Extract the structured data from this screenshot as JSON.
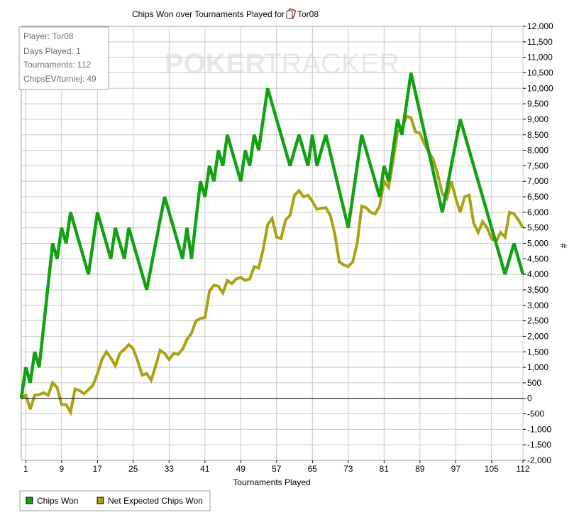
{
  "colors": {
    "chips_won": "#13a013",
    "net_expected": "#a8a214",
    "grid": "#c8c8c8",
    "axis": "#000000"
  },
  "watermark": {
    "part1": "POKER",
    "part2": "TRACKER"
  },
  "player_icon": "card-icon",
  "info_box": {
    "lines": [
      "Player: Tor08",
      "Days Played: 1",
      "Tournaments: 112",
      "ChipsEV/turniej: 49"
    ]
  },
  "legend": {
    "items": [
      "Chips Won",
      "Net Expected Chips Won"
    ]
  },
  "chart_data": {
    "type": "line",
    "title_prefix": "Chips Won over Tournaments Played for",
    "title_player": "Tor08",
    "xlabel": "Tournaments Played",
    "ylabel": "#",
    "xlim": [
      0,
      112
    ],
    "ylim": [
      -2000,
      12000
    ],
    "x_ticks": [
      1,
      9,
      17,
      25,
      33,
      41,
      49,
      57,
      65,
      73,
      81,
      89,
      97,
      105,
      112
    ],
    "y_ticks": [
      -2000,
      -1500,
      -1000,
      -500,
      0,
      500,
      1000,
      1500,
      2000,
      2500,
      3000,
      3500,
      4000,
      4500,
      5000,
      5500,
      6000,
      6500,
      7000,
      7500,
      8000,
      8500,
      9000,
      9500,
      10000,
      10500,
      11000,
      11500,
      12000
    ],
    "y_tick_labels": [
      "-2,000",
      "-1,500",
      "-1,000",
      "-500",
      "0",
      "500",
      "1,000",
      "1,500",
      "2,000",
      "2,500",
      "3,000",
      "3,500",
      "4,000",
      "4,500",
      "5,000",
      "5,500",
      "6,000",
      "6,500",
      "7,000",
      "7,500",
      "8,000",
      "8,500",
      "9,000",
      "9,500",
      "10,000",
      "10,500",
      "11,000",
      "11,500",
      "12,000"
    ],
    "grid": true,
    "legend_position": "bottom-left",
    "series": [
      {
        "name": "Chips Won",
        "points": [
          [
            0,
            0
          ],
          [
            1,
            1000
          ],
          [
            2,
            500
          ],
          [
            3,
            1500
          ],
          [
            4,
            1000
          ],
          [
            7,
            5000
          ],
          [
            8,
            4500
          ],
          [
            9,
            5500
          ],
          [
            10,
            5000
          ],
          [
            11,
            6000
          ],
          [
            15,
            4000
          ],
          [
            17,
            6000
          ],
          [
            20,
            4500
          ],
          [
            21,
            5500
          ],
          [
            23,
            4500
          ],
          [
            24,
            5500
          ],
          [
            28,
            3500
          ],
          [
            32,
            6500
          ],
          [
            36,
            4500
          ],
          [
            37,
            5500
          ],
          [
            38,
            4500
          ],
          [
            40,
            7000
          ],
          [
            41,
            6500
          ],
          [
            42,
            7500
          ],
          [
            43,
            7000
          ],
          [
            44,
            8000
          ],
          [
            45,
            7500
          ],
          [
            46,
            8500
          ],
          [
            49,
            7000
          ],
          [
            50,
            8000
          ],
          [
            51,
            7500
          ],
          [
            52,
            8500
          ],
          [
            53,
            8000
          ],
          [
            55,
            10000
          ],
          [
            60,
            7500
          ],
          [
            62,
            8500
          ],
          [
            64,
            7500
          ],
          [
            65,
            8500
          ],
          [
            66,
            7500
          ],
          [
            68,
            8500
          ],
          [
            73,
            5500
          ],
          [
            76,
            8500
          ],
          [
            80,
            6500
          ],
          [
            81,
            7500
          ],
          [
            82,
            7000
          ],
          [
            84,
            9000
          ],
          [
            85,
            8500
          ],
          [
            87,
            10500
          ],
          [
            94,
            6000
          ],
          [
            98,
            9000
          ],
          [
            108,
            4000
          ],
          [
            110,
            5000
          ],
          [
            112,
            4000
          ]
        ]
      },
      {
        "name": "Net Expected Chips Won",
        "points": [
          [
            0,
            0
          ],
          [
            1,
            100
          ],
          [
            2,
            -350
          ],
          [
            3,
            100
          ],
          [
            4,
            120
          ],
          [
            5,
            180
          ],
          [
            6,
            100
          ],
          [
            7,
            500
          ],
          [
            8,
            350
          ],
          [
            9,
            -200
          ],
          [
            10,
            -200
          ],
          [
            11,
            -450
          ],
          [
            12,
            300
          ],
          [
            13,
            250
          ],
          [
            14,
            150
          ],
          [
            15,
            280
          ],
          [
            16,
            420
          ],
          [
            17,
            800
          ],
          [
            18,
            1250
          ],
          [
            19,
            1500
          ],
          [
            20,
            1300
          ],
          [
            21,
            1050
          ],
          [
            22,
            1450
          ],
          [
            23,
            1580
          ],
          [
            24,
            1730
          ],
          [
            25,
            1600
          ],
          [
            26,
            1200
          ],
          [
            27,
            750
          ],
          [
            28,
            800
          ],
          [
            29,
            580
          ],
          [
            30,
            1050
          ],
          [
            31,
            1550
          ],
          [
            32,
            1450
          ],
          [
            33,
            1250
          ],
          [
            34,
            1450
          ],
          [
            35,
            1420
          ],
          [
            36,
            1580
          ],
          [
            37,
            1900
          ],
          [
            38,
            2100
          ],
          [
            39,
            2500
          ],
          [
            40,
            2580
          ],
          [
            41,
            2600
          ],
          [
            42,
            3450
          ],
          [
            43,
            3650
          ],
          [
            44,
            3620
          ],
          [
            45,
            3400
          ],
          [
            46,
            3800
          ],
          [
            47,
            3700
          ],
          [
            48,
            3850
          ],
          [
            49,
            3900
          ],
          [
            50,
            3800
          ],
          [
            51,
            3850
          ],
          [
            52,
            4250
          ],
          [
            53,
            4200
          ],
          [
            54,
            4800
          ],
          [
            55,
            5600
          ],
          [
            56,
            5800
          ],
          [
            57,
            5200
          ],
          [
            58,
            5150
          ],
          [
            59,
            5750
          ],
          [
            60,
            5900
          ],
          [
            61,
            6550
          ],
          [
            62,
            6700
          ],
          [
            63,
            6500
          ],
          [
            64,
            6550
          ],
          [
            65,
            6350
          ],
          [
            66,
            6100
          ],
          [
            67,
            6130
          ],
          [
            68,
            6150
          ],
          [
            69,
            5900
          ],
          [
            70,
            5300
          ],
          [
            71,
            4400
          ],
          [
            72,
            4300
          ],
          [
            73,
            4250
          ],
          [
            74,
            4400
          ],
          [
            75,
            5000
          ],
          [
            76,
            6200
          ],
          [
            77,
            6150
          ],
          [
            78,
            6000
          ],
          [
            79,
            5950
          ],
          [
            80,
            6200
          ],
          [
            81,
            7000
          ],
          [
            82,
            6800
          ],
          [
            83,
            7650
          ],
          [
            84,
            8600
          ],
          [
            85,
            8700
          ],
          [
            86,
            9100
          ],
          [
            87,
            9050
          ],
          [
            88,
            8600
          ],
          [
            89,
            8550
          ],
          [
            90,
            8200
          ],
          [
            91,
            7950
          ],
          [
            92,
            7700
          ],
          [
            93,
            7200
          ],
          [
            94,
            6600
          ],
          [
            95,
            6450
          ],
          [
            96,
            7000
          ],
          [
            97,
            6450
          ],
          [
            98,
            6000
          ],
          [
            99,
            6500
          ],
          [
            100,
            6550
          ],
          [
            101,
            5650
          ],
          [
            102,
            5350
          ],
          [
            103,
            5700
          ],
          [
            104,
            5500
          ],
          [
            105,
            5150
          ],
          [
            106,
            5050
          ],
          [
            107,
            5350
          ],
          [
            108,
            5200
          ],
          [
            109,
            6000
          ],
          [
            110,
            5950
          ],
          [
            111,
            5750
          ],
          [
            112,
            5500
          ]
        ]
      }
    ]
  }
}
